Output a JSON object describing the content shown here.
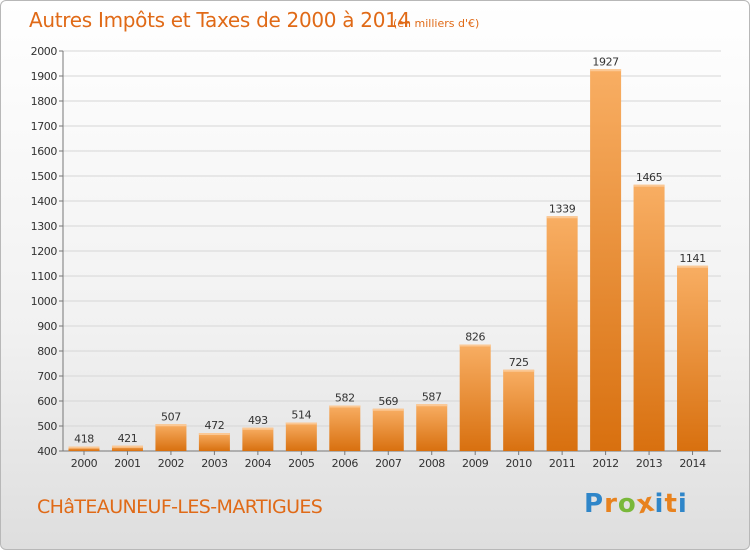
{
  "title": "Autres Impôts et Taxes de 2000 à 2014",
  "unit_label": "(en milliers d'€)",
  "location": "CHâTEAUNEUF-LES-MARTIGUES",
  "logo": {
    "letters": [
      "P",
      "r",
      "o",
      "x",
      "i",
      "t",
      "i"
    ],
    "colors": [
      "#2f86c9",
      "#e8821e",
      "#79b83a",
      "#e8821e",
      "#2f86c9",
      "#e8821e",
      "#2f86c9"
    ]
  },
  "colors": {
    "bar_light": "#f7a95a",
    "bar_dark": "#d96f10",
    "text": "#e06a17"
  },
  "chart_data": {
    "type": "bar",
    "title": "Autres Impôts et Taxes de 2000 à 2014",
    "categories": [
      "2000",
      "2001",
      "2002",
      "2003",
      "2004",
      "2005",
      "2006",
      "2007",
      "2008",
      "2009",
      "2010",
      "2011",
      "2012",
      "2013",
      "2014"
    ],
    "values": [
      418,
      421,
      507,
      472,
      493,
      514,
      582,
      569,
      587,
      826,
      725,
      1339,
      1927,
      1465,
      1141
    ],
    "ylim": [
      400,
      2000
    ],
    "yticks": [
      400,
      500,
      600,
      700,
      800,
      900,
      1000,
      1100,
      1200,
      1300,
      1400,
      1500,
      1600,
      1700,
      1800,
      1900,
      2000
    ],
    "grid": true
  }
}
